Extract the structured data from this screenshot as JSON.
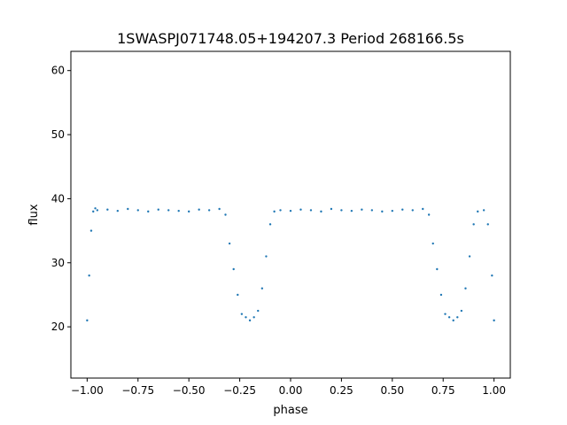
{
  "chart_data": {
    "type": "scatter",
    "title": "1SWASPJ071748.05+194207.3 Period 268166.5s",
    "xlabel": "phase",
    "ylabel": "flux",
    "xlim": [
      -1.08,
      1.08
    ],
    "ylim": [
      12.0,
      63.0
    ],
    "xticks": [
      -1.0,
      -0.75,
      -0.5,
      -0.25,
      0.0,
      0.25,
      0.5,
      0.75,
      1.0
    ],
    "xtick_labels": [
      "−1.00",
      "−0.75",
      "−0.50",
      "−0.25",
      "0.00",
      "0.25",
      "0.50",
      "0.75",
      "1.00"
    ],
    "yticks": [
      20,
      30,
      40,
      50,
      60
    ],
    "ytick_labels": [
      "20",
      "30",
      "40",
      "50",
      "60"
    ],
    "grid": false,
    "marker_color": "#1f77b4",
    "series": [
      {
        "x": [
          -1.0,
          -0.99,
          -0.98,
          -0.97,
          -0.96,
          -0.95,
          -0.9,
          -0.85,
          -0.8,
          -0.75,
          -0.7,
          -0.65,
          -0.6,
          -0.55,
          -0.5,
          -0.45,
          -0.4,
          -0.35,
          -0.32,
          -0.3,
          -0.28,
          -0.26,
          -0.24,
          -0.22,
          -0.2,
          -0.18,
          -0.16,
          -0.14,
          -0.12,
          -0.1,
          -0.08,
          -0.05,
          0.0,
          0.05,
          0.1,
          0.15,
          0.2,
          0.25,
          0.3,
          0.35,
          0.4,
          0.45,
          0.5,
          0.55,
          0.6,
          0.65,
          0.68,
          0.7,
          0.72,
          0.74,
          0.76,
          0.78,
          0.8,
          0.82,
          0.84,
          0.86,
          0.88,
          0.9,
          0.92,
          0.95,
          0.97,
          0.99,
          1.0
        ],
        "y": [
          21.0,
          28.0,
          35.0,
          38.0,
          38.5,
          38.2,
          38.3,
          38.1,
          38.4,
          38.2,
          38.0,
          38.3,
          38.2,
          38.1,
          38.0,
          38.3,
          38.2,
          38.4,
          37.5,
          33.0,
          29.0,
          25.0,
          22.0,
          21.5,
          21.0,
          21.5,
          22.5,
          26.0,
          31.0,
          36.0,
          38.0,
          38.2,
          38.1,
          38.3,
          38.2,
          38.0,
          38.4,
          38.2,
          38.1,
          38.3,
          38.2,
          38.0,
          38.1,
          38.3,
          38.2,
          38.4,
          37.5,
          33.0,
          29.0,
          25.0,
          22.0,
          21.5,
          21.0,
          21.5,
          22.5,
          26.0,
          31.0,
          36.0,
          38.0,
          38.2,
          36.0,
          28.0,
          21.0
        ]
      }
    ]
  }
}
